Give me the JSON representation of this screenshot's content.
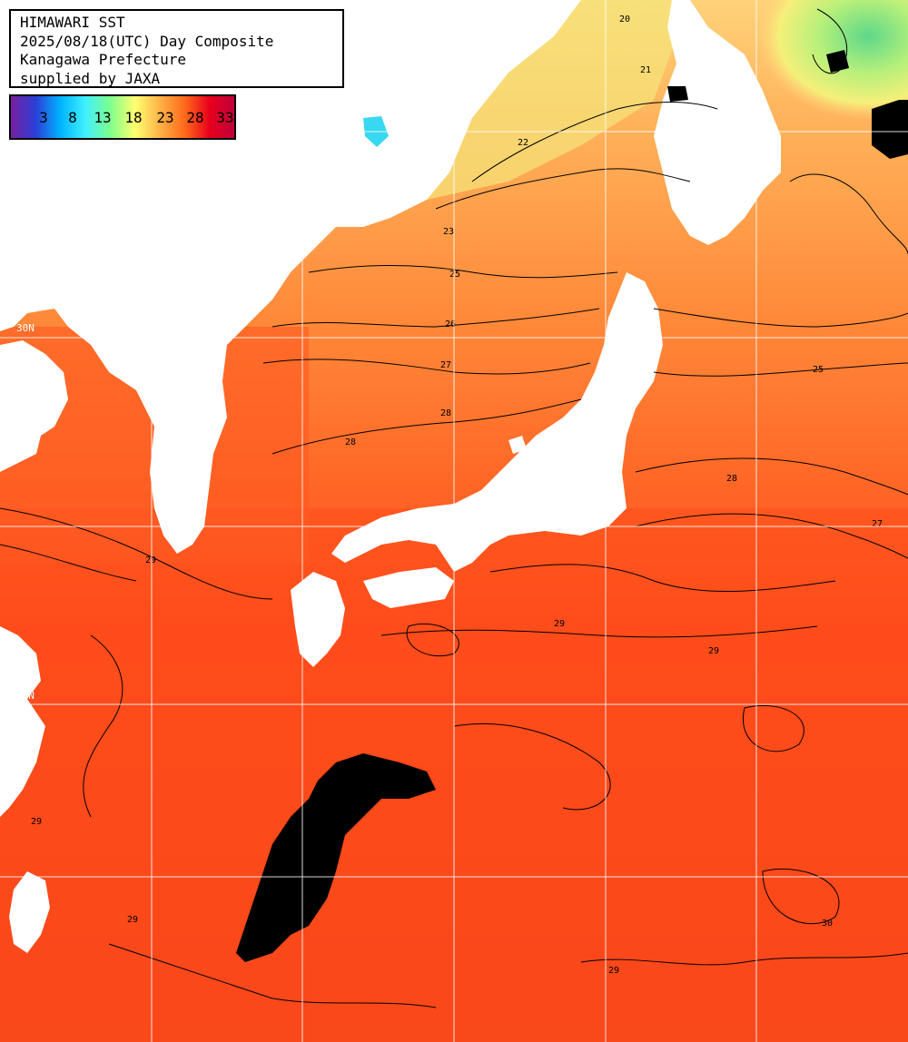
{
  "title": {
    "line1": "HIMAWARI SST",
    "line2": "2025/08/18(UTC) Day Composite",
    "line3": "Kanagawa Prefecture",
    "line4": "supplied by JAXA"
  },
  "legend": {
    "ticks": [
      "3",
      "8",
      "13",
      "18",
      "23",
      "28",
      "33"
    ],
    "unit": "",
    "colors": [
      "#7a1fa0",
      "#2a3fd8",
      "#00b4ff",
      "#40f0ff",
      "#7dff8c",
      "#ffff70",
      "#ffb347",
      "#ff6a1a",
      "#e8001c",
      "#c0003a"
    ]
  },
  "map": {
    "grid_color": "#ffffff",
    "land_color": "#ffffff",
    "cloud_color": "#000000",
    "edge_labels": [
      "30N",
      "20N"
    ],
    "contour_labels": [
      "20",
      "21",
      "22",
      "23",
      "25",
      "26",
      "27",
      "28",
      "29",
      "30"
    ]
  }
}
